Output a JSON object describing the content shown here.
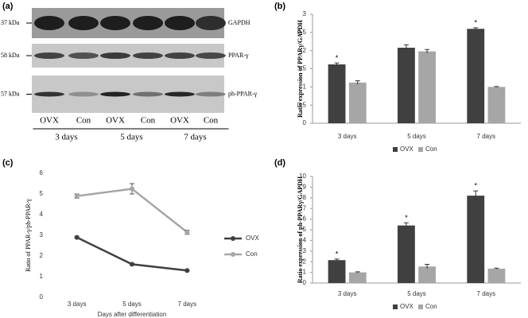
{
  "blot": {
    "panel": "(a)",
    "rows": [
      {
        "kda": "37 kDa",
        "protein": "GAPDH"
      },
      {
        "kda": "58 kDa",
        "protein": "PPAR-γ"
      },
      {
        "kda": "57 kDa",
        "protein": "ph-PPAR-γ"
      }
    ],
    "lanes": [
      "OVX",
      "Con",
      "OVX",
      "Con",
      "OVX",
      "Con"
    ],
    "groups": [
      "3 days",
      "5 days",
      "7 days"
    ]
  },
  "chart_data": [
    {
      "type": "bar",
      "panel": "(b)",
      "y_label": "Ratio expression of PPARγ/GAPDH",
      "categories": [
        "3 days",
        "5 days",
        "7 days"
      ],
      "series": [
        {
          "name": "OVX",
          "color": "#404040",
          "values": [
            1.62,
            2.08,
            2.6
          ],
          "errors": [
            0.04,
            0.08,
            0.03
          ],
          "markers": [
            "*",
            null,
            "*"
          ]
        },
        {
          "name": "Con",
          "color": "#a6a6a6",
          "values": [
            1.12,
            1.98,
            1.0
          ],
          "errors": [
            0.05,
            0.05,
            0.01
          ]
        }
      ],
      "ylim": [
        0,
        3
      ],
      "yticks": [
        0,
        0.5,
        1,
        1.5,
        2,
        2.5,
        3
      ],
      "legend": "bottom"
    },
    {
      "type": "line",
      "panel": "(c)",
      "y_label": "Ratio of PPAR-γ/ph-PPAR-γ",
      "x_label": "Days after differentiation",
      "categories": [
        "3 days",
        "5 days",
        "7 days"
      ],
      "series": [
        {
          "name": "OVX",
          "color": "#404040",
          "values": [
            2.9,
            1.6,
            1.3
          ],
          "errors": [
            0.05,
            0.05,
            0.03
          ]
        },
        {
          "name": "Con",
          "color": "#a6a6a6",
          "values": [
            4.9,
            5.25,
            3.15
          ],
          "errors": [
            0.1,
            0.25,
            0.1
          ]
        }
      ],
      "ylim": [
        0,
        6
      ],
      "yticks": [
        0,
        1,
        2,
        3,
        4,
        5,
        6
      ],
      "legend": "right"
    },
    {
      "type": "bar",
      "panel": "(d)",
      "y_label": "Ratio expression of ph-PPARγ/GAPDH",
      "categories": [
        "3 days",
        "5 days",
        "7 days"
      ],
      "series": [
        {
          "name": "OVX",
          "color": "#404040",
          "values": [
            2.15,
            5.4,
            8.2
          ],
          "errors": [
            0.1,
            0.25,
            0.45
          ],
          "markers": [
            "*",
            "*",
            "*"
          ]
        },
        {
          "name": "Con",
          "color": "#a6a6a6",
          "values": [
            1.0,
            1.55,
            1.35
          ],
          "errors": [
            0.05,
            0.2,
            0.05
          ]
        }
      ],
      "ylim": [
        0,
        10
      ],
      "yticks": [
        0,
        1,
        2,
        3,
        4,
        5,
        6,
        7,
        8,
        9,
        10
      ],
      "legend": "bottom"
    }
  ]
}
